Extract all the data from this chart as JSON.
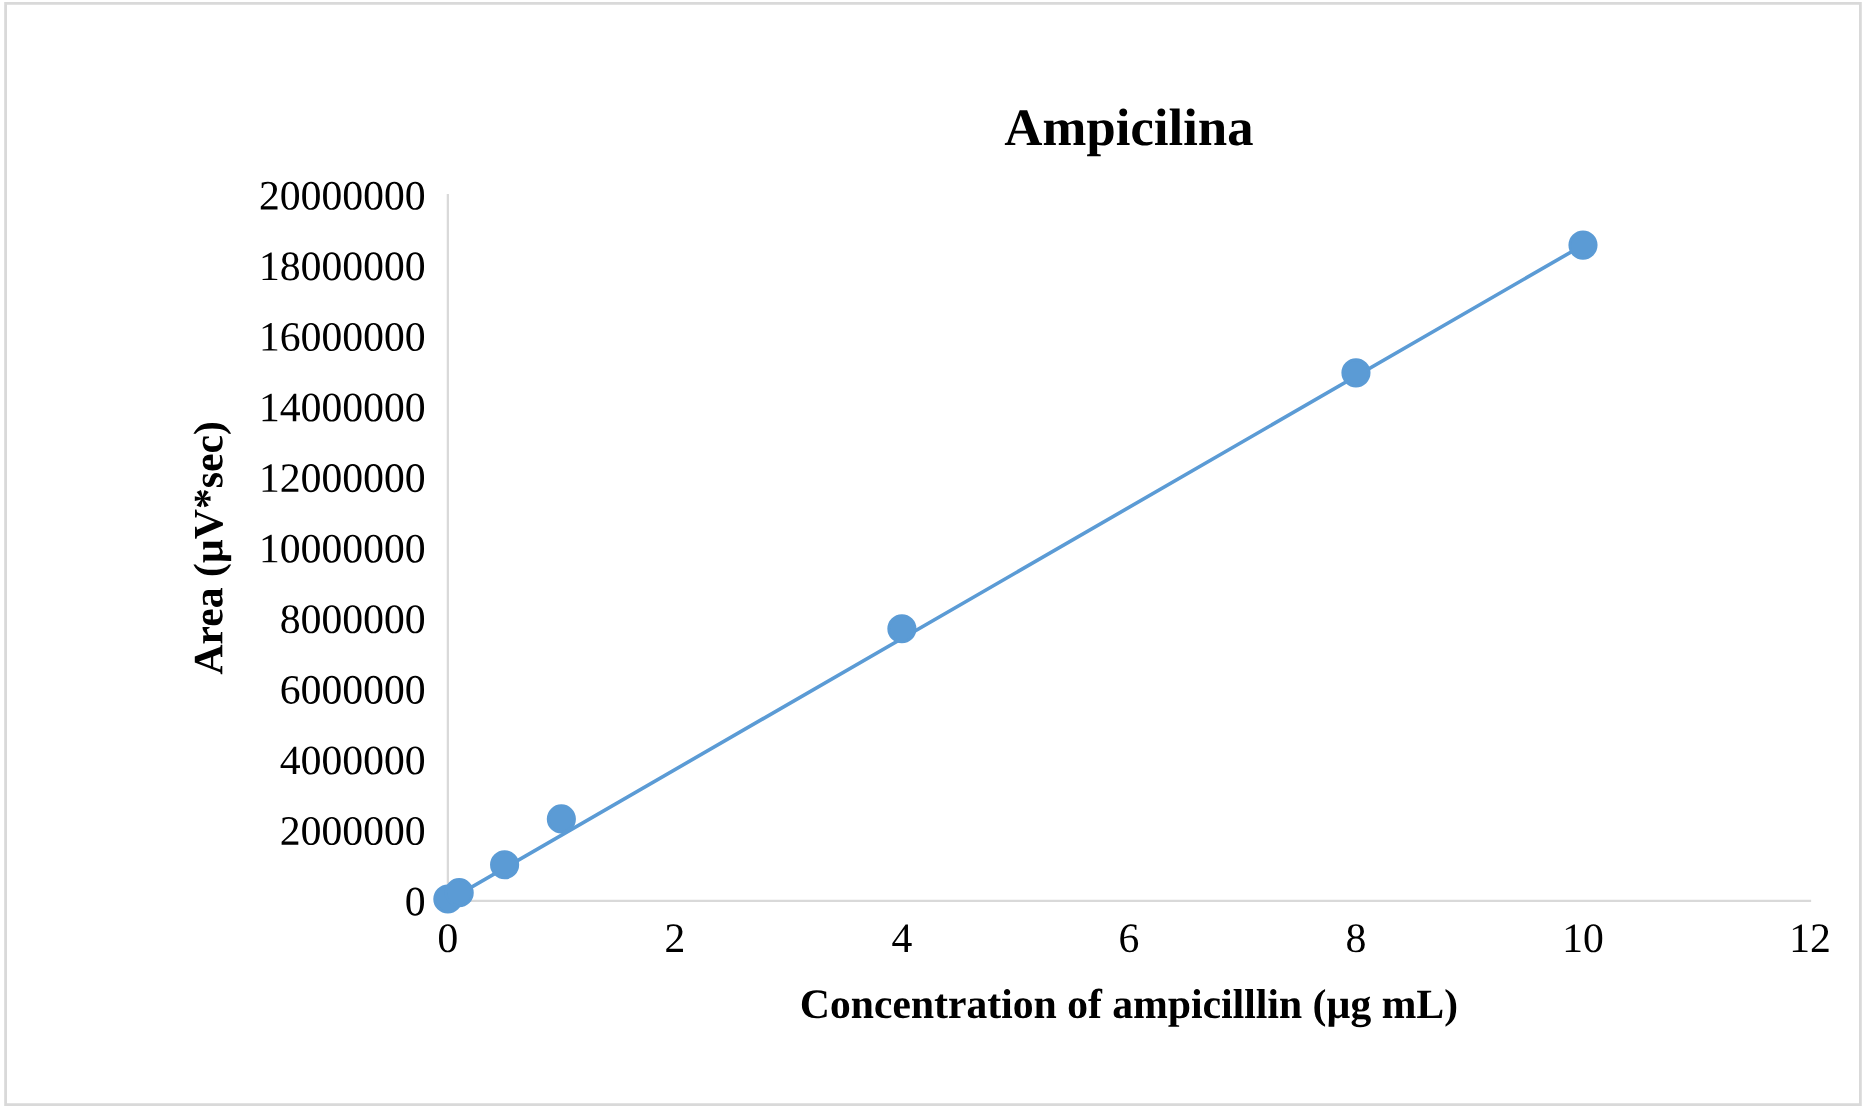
{
  "chart_data": {
    "type": "scatter",
    "title": "Ampicilina",
    "xlabel": "Concentration of ampicilllin (µg mL)",
    "ylabel": "Area (µV*sec)",
    "series": [
      {
        "marker": "circle",
        "color": "#5b9bd5",
        "x": [
          0,
          0.1,
          0.5,
          1,
          4,
          8,
          10
        ],
        "values": [
          50000,
          230000,
          1020000,
          2320000,
          7710000,
          14960000,
          18580000
        ]
      },
      {
        "type": "line",
        "marker": "none",
        "color": "#5b9bd5",
        "x": [
          0,
          10
        ],
        "values": [
          0,
          18580000
        ]
      }
    ],
    "xlim": [
      0,
      12
    ],
    "xticks": [
      0,
      2,
      4,
      6,
      8,
      10,
      12
    ],
    "ylim": [
      0,
      20000000
    ],
    "yticks": [
      0,
      2000000,
      4000000,
      6000000,
      8000000,
      10000000,
      12000000,
      14000000,
      16000000,
      18000000,
      20000000
    ],
    "grid": false,
    "legend": false
  }
}
